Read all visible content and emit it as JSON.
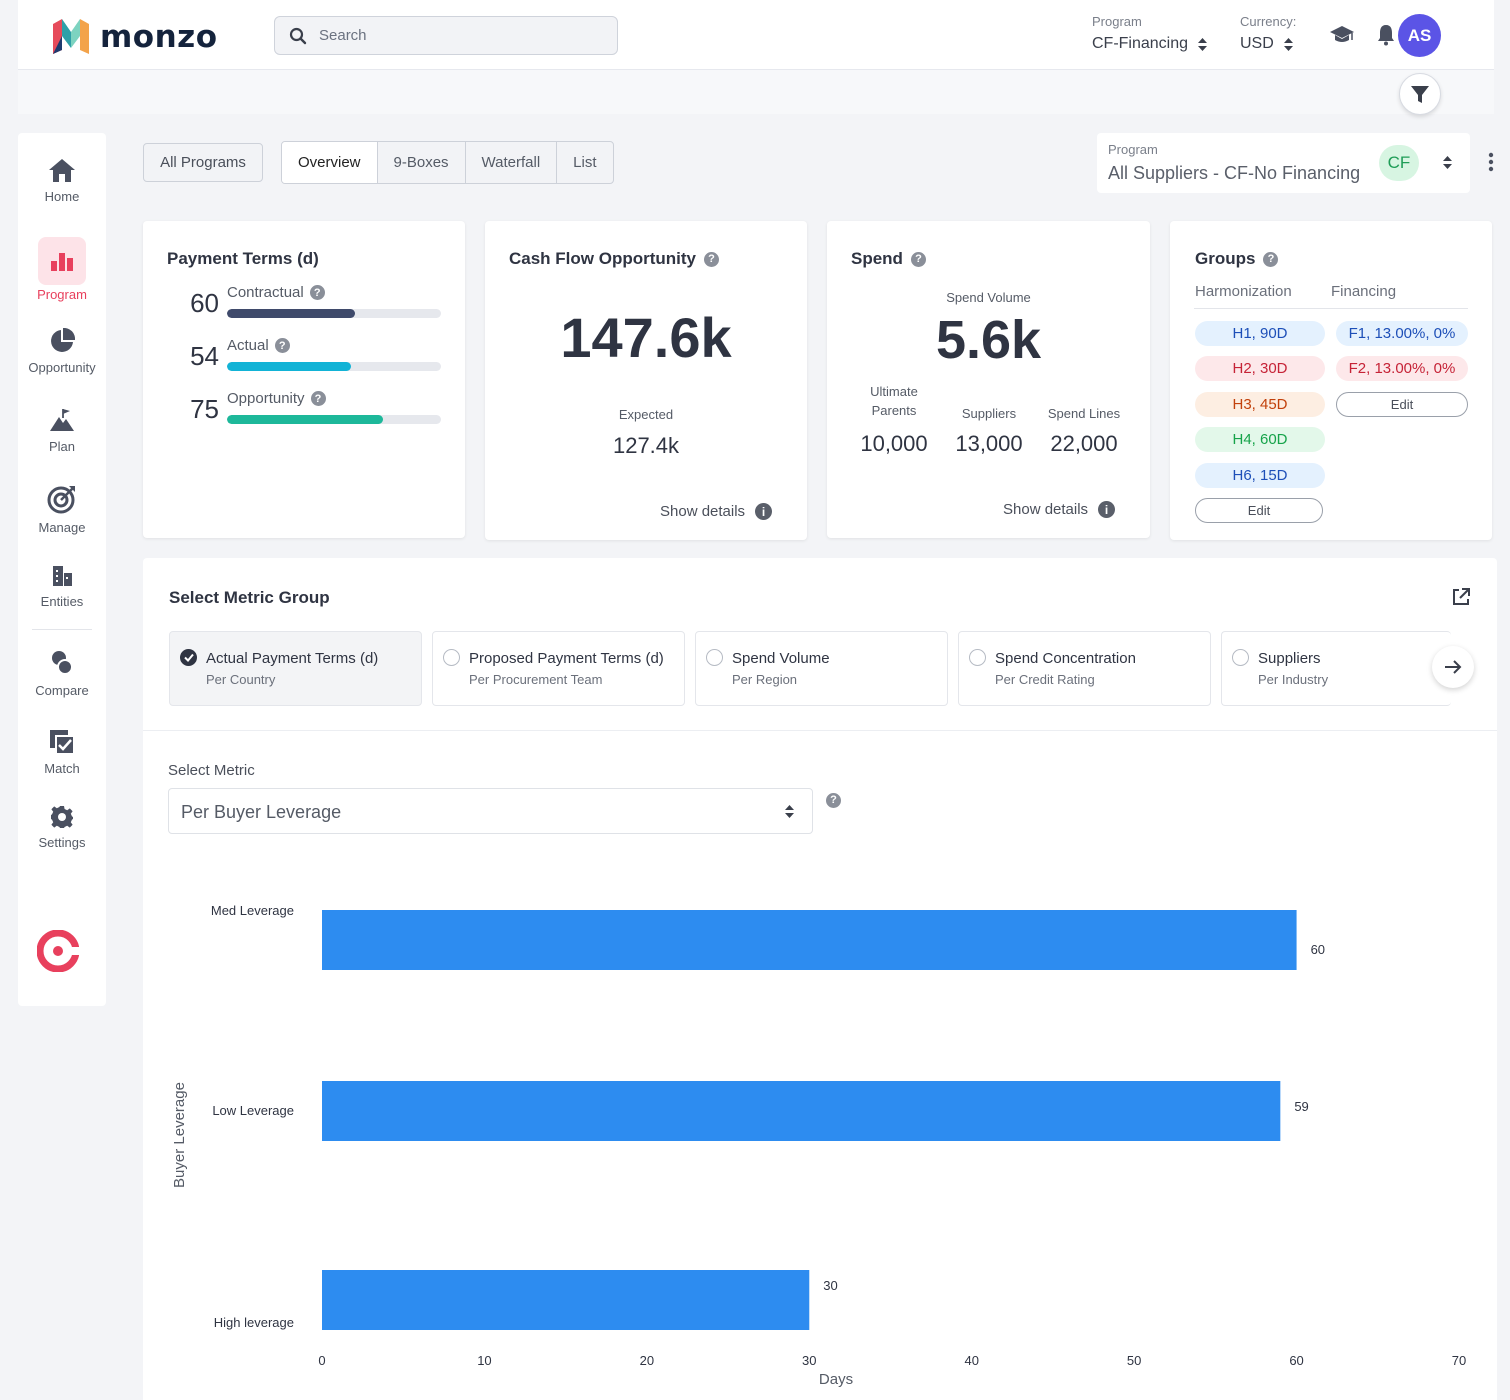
{
  "header": {
    "brand": "monzo",
    "search_placeholder": "Search",
    "program_label": "Program",
    "program_value": "CF-Financing",
    "currency_label": "Currency:",
    "currency_value": "USD",
    "avatar_initials": "AS"
  },
  "sidebar": {
    "items": [
      {
        "label": "Home",
        "icon": "home-icon"
      },
      {
        "label": "Program",
        "icon": "bar-chart-icon",
        "active": true
      },
      {
        "label": "Opportunity",
        "icon": "pie-chart-icon"
      },
      {
        "label": "Plan",
        "icon": "mountain-flag-icon"
      },
      {
        "label": "Manage",
        "icon": "target-icon"
      },
      {
        "label": "Entities",
        "icon": "building-icon"
      },
      {
        "label": "Compare",
        "icon": "compare-icon"
      },
      {
        "label": "Match",
        "icon": "checkbox-stack-icon"
      },
      {
        "label": "Settings",
        "icon": "gear-icon"
      }
    ]
  },
  "toolbar": {
    "all_programs": "All Programs",
    "tabs": [
      "Overview",
      "9-Boxes",
      "Waterfall",
      "List"
    ],
    "active_tab": "Overview",
    "program_label": "Program",
    "program_value": "All Suppliers - CF-No Financing",
    "program_badge": "CF"
  },
  "payment_terms": {
    "title": "Payment Terms (d)",
    "rows": [
      {
        "value": "60",
        "label": "Contractual",
        "fill": 0.6,
        "color": "#3f4a6b"
      },
      {
        "value": "54",
        "label": "Actual",
        "fill": 0.58,
        "color": "#12b3d6"
      },
      {
        "value": "75",
        "label": "Opportunity",
        "fill": 0.73,
        "color": "#1db89a"
      }
    ]
  },
  "cash_flow": {
    "title": "Cash Flow Opportunity",
    "value": "147.6k",
    "expected_label": "Expected",
    "expected_value": "127.4k",
    "show_details": "Show details"
  },
  "spend": {
    "title": "Spend",
    "volume_label": "Spend Volume",
    "volume_value": "5.6k",
    "stats": [
      {
        "label": "Ultimate Parents",
        "value": "10,000"
      },
      {
        "label": "Suppliers",
        "value": "13,000"
      },
      {
        "label": "Spend Lines",
        "value": "22,000"
      }
    ],
    "show_details": "Show details"
  },
  "groups": {
    "title": "Groups",
    "harmonization_label": "Harmonization",
    "financing_label": "Financing",
    "harmonization": [
      {
        "text": "H1, 90D",
        "bg": "#e4f1fe",
        "fg": "#1d4fb8"
      },
      {
        "text": "H2, 30D",
        "bg": "#fde8ea",
        "fg": "#c62337"
      },
      {
        "text": "H3, 45D",
        "bg": "#fdeee2",
        "fg": "#c2410c"
      },
      {
        "text": "H4, 60D",
        "bg": "#e3f8ea",
        "fg": "#16a34a"
      },
      {
        "text": "H6, 15D",
        "bg": "#e4f1fe",
        "fg": "#1d4fb8"
      }
    ],
    "financing": [
      {
        "text": "F1, 13.00%, 0%",
        "bg": "#e4f1fe",
        "fg": "#1d4fb8"
      },
      {
        "text": "F2,  13.00%, 0%",
        "bg": "#fde8ea",
        "fg": "#c62337"
      }
    ],
    "edit_label": "Edit"
  },
  "metric_group": {
    "title": "Select Metric Group",
    "options": [
      {
        "title": "Actual Payment Terms (d)",
        "subtitle": "Per Country",
        "selected": true
      },
      {
        "title": "Proposed Payment Terms (d)",
        "subtitle": "Per Procurement Team",
        "selected": false
      },
      {
        "title": "Spend Volume",
        "subtitle": "Per Region",
        "selected": false
      },
      {
        "title": "Spend Concentration",
        "subtitle": "Per Credit Rating",
        "selected": false
      },
      {
        "title": "Suppliers",
        "subtitle": "Per Industry",
        "selected": false
      }
    ],
    "select_metric_label": "Select Metric",
    "select_metric_value": "Per Buyer Leverage"
  },
  "chart_data": {
    "type": "bar",
    "orientation": "horizontal",
    "categories": [
      "Med Leverage",
      "Low  Leverage",
      "High leverage"
    ],
    "values": [
      60,
      59,
      30
    ],
    "xlabel": "Days",
    "ylabel": "Buyer Leverage",
    "xlim": [
      0,
      70
    ],
    "xticks": [
      0,
      10,
      20,
      30,
      40,
      50,
      60,
      70
    ],
    "bar_color": "#2d8cf0",
    "grid": false
  }
}
